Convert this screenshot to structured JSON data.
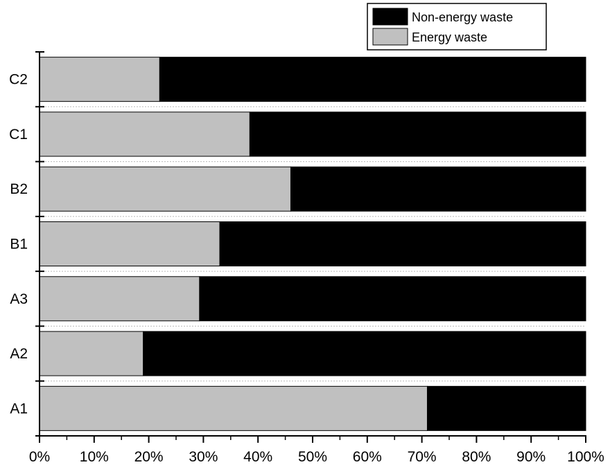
{
  "chart_data": {
    "type": "bar",
    "orientation": "horizontal",
    "stacked": true,
    "categories": [
      "A1",
      "A2",
      "A3",
      "B1",
      "B2",
      "C1",
      "C2"
    ],
    "series": [
      {
        "name": "Energy waste",
        "values": [
          71,
          19,
          29.3,
          33,
          46,
          38.5,
          22
        ]
      },
      {
        "name": "Non-energy waste",
        "values": [
          29,
          81,
          70.7,
          67,
          54,
          61.5,
          78
        ]
      }
    ],
    "colors": {
      "Energy waste": "#c0c0c0",
      "Non-energy waste": "#000000"
    },
    "xlim": [
      0,
      100
    ],
    "x_ticks": [
      "0%",
      "10%",
      "20%",
      "30%",
      "40%",
      "50%",
      "60%",
      "70%",
      "80%",
      "90%",
      "100%"
    ],
    "legend_entries": [
      "Non-energy waste",
      "Energy waste"
    ],
    "legend_position": "top-right",
    "grid": true,
    "title": "",
    "xlabel": "",
    "ylabel": ""
  }
}
